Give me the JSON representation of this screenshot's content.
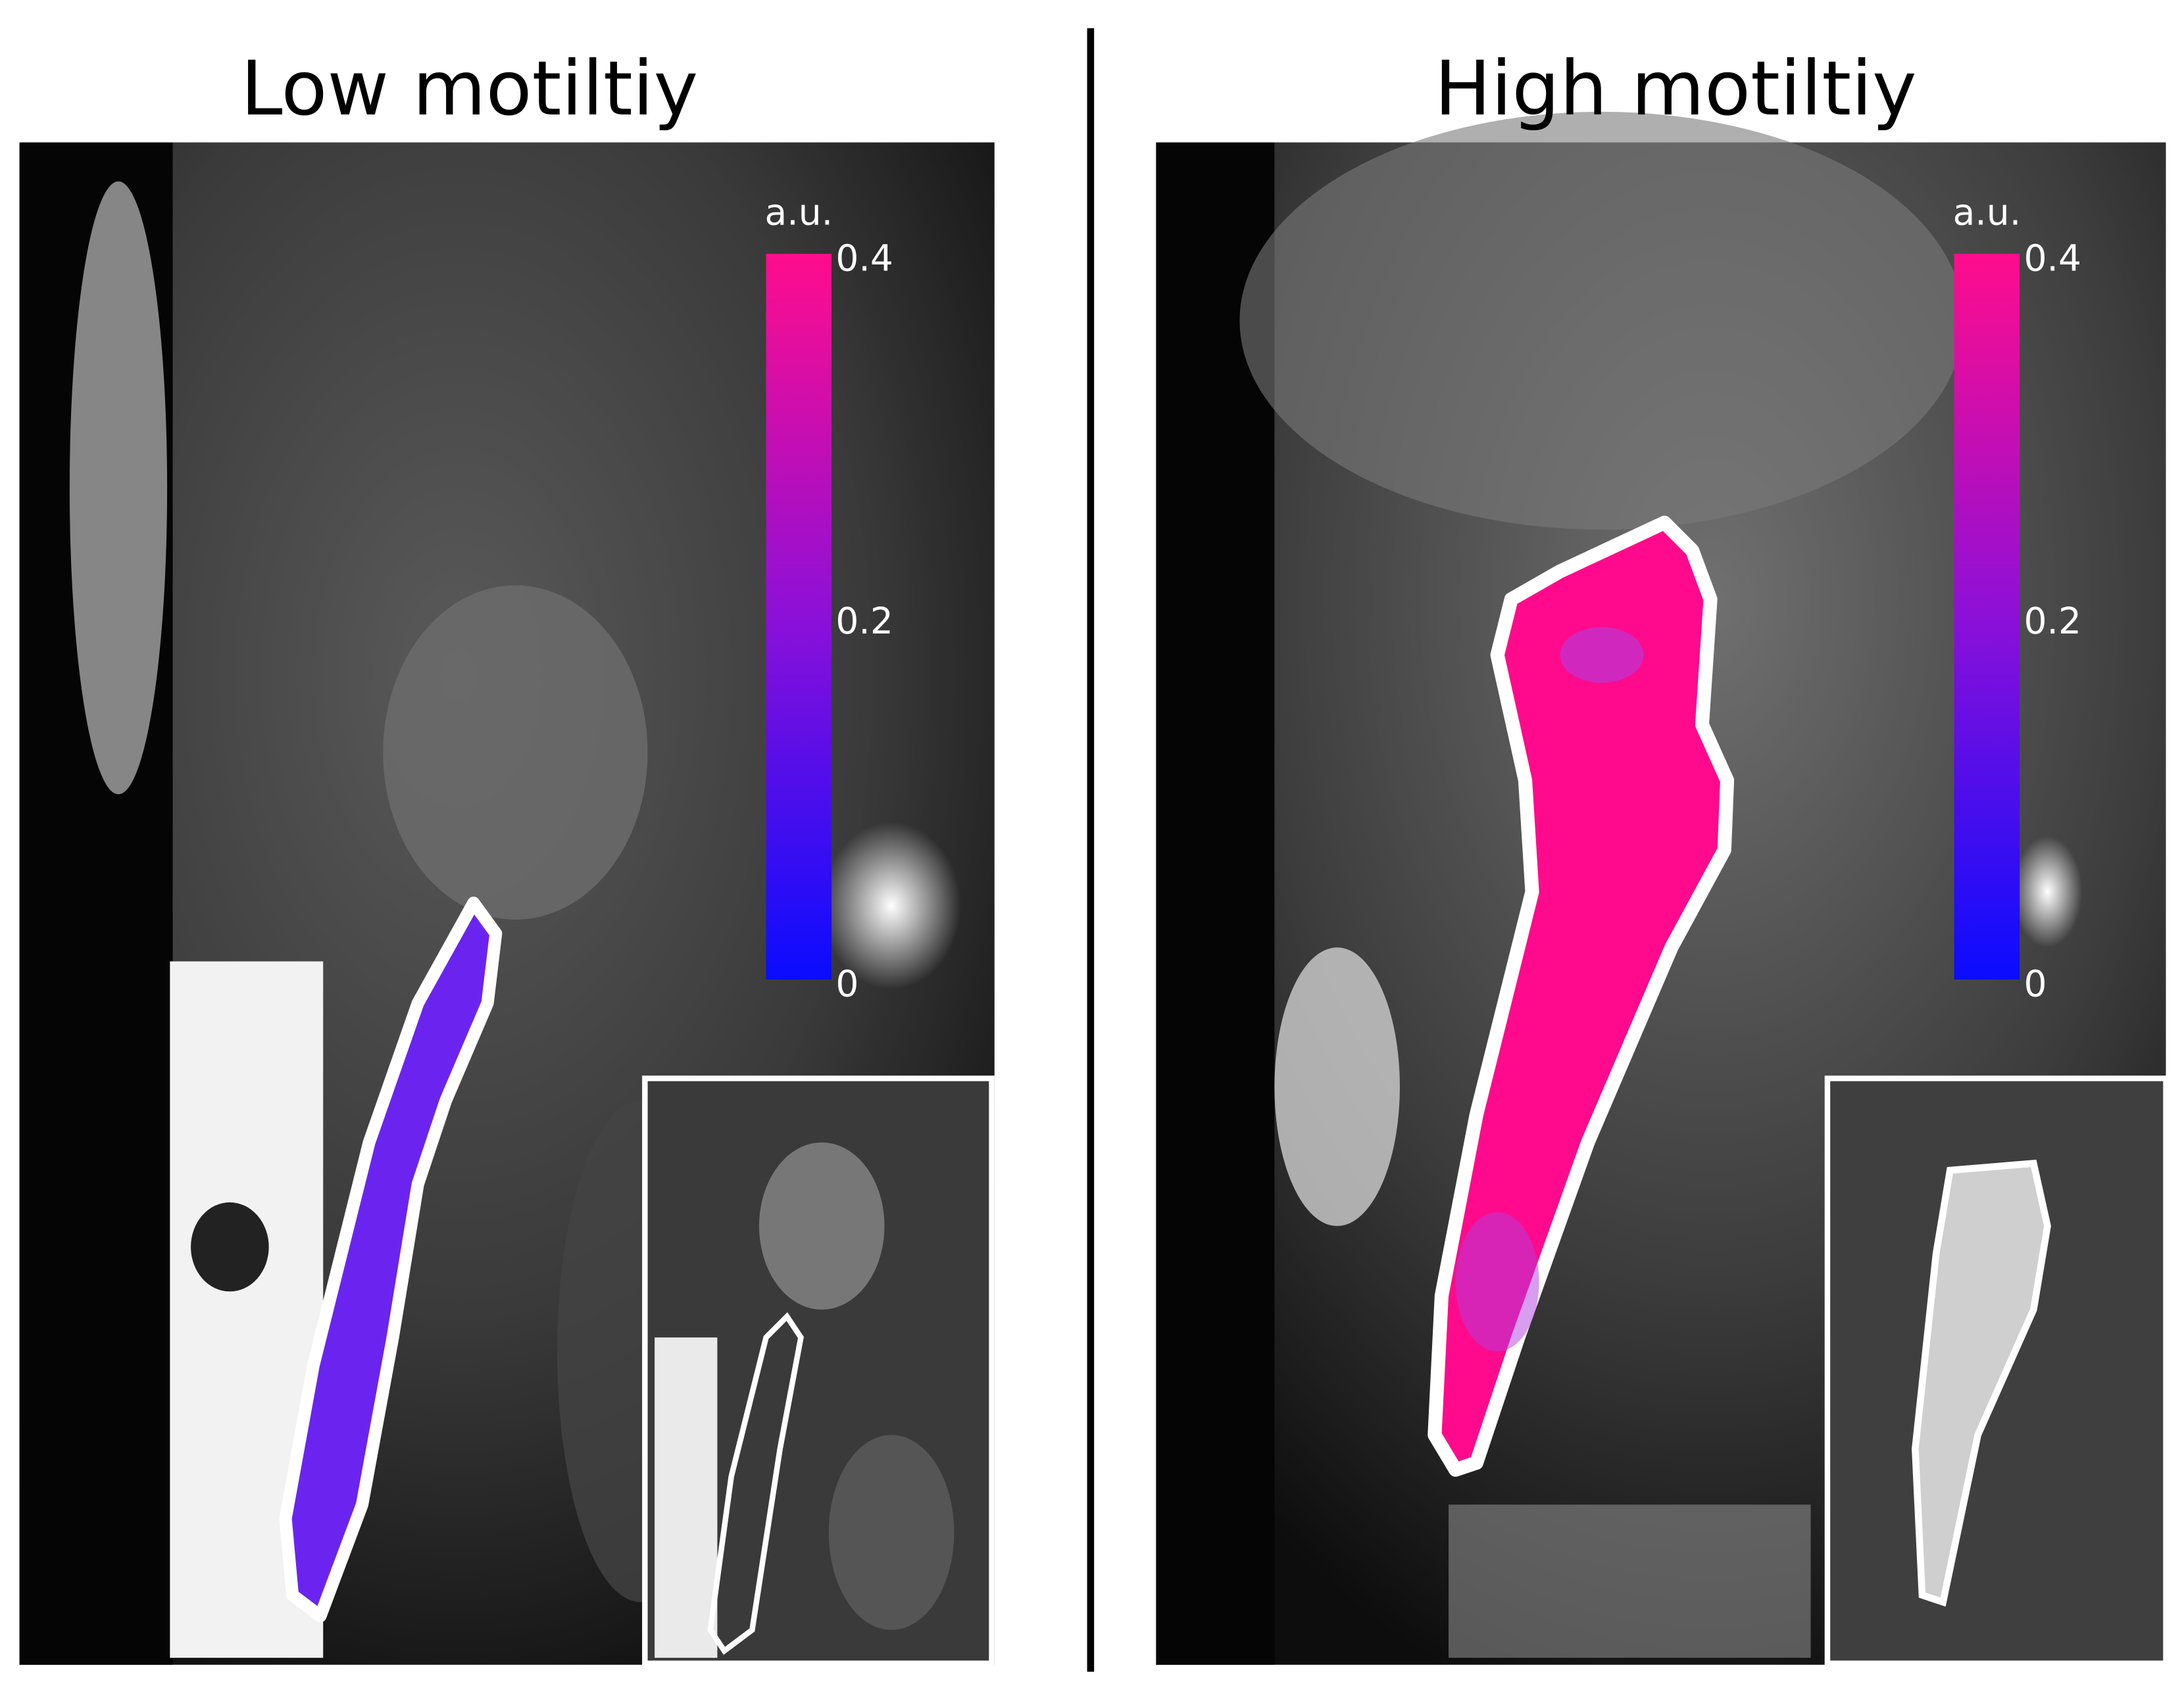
{
  "panels": [
    {
      "title": "Low motiltiy",
      "colorbar": {
        "unit": "a.u.",
        "ticks": [
          0.4,
          0.2,
          0
        ]
      }
    },
    {
      "title": "High motiltiy",
      "colorbar": {
        "unit": "a.u.",
        "ticks": [
          0.4,
          0.2,
          0
        ]
      }
    }
  ]
}
